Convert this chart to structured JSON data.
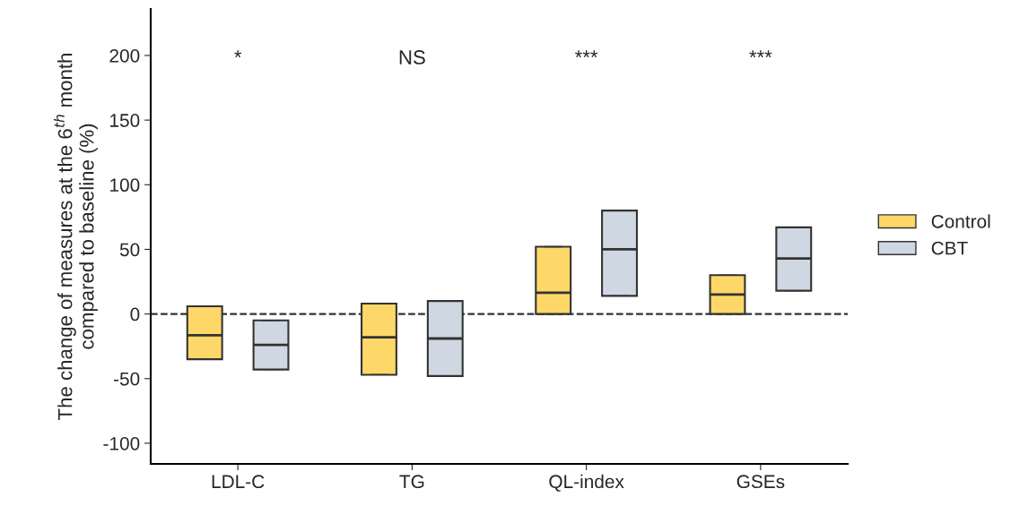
{
  "chart_data": {
    "type": "box",
    "ylabel": "The change of measures at the 6$^{th}$ month\ncompared to baseline (%)",
    "categories": [
      "LDL-C",
      "TG",
      "QL-index",
      "GSEs"
    ],
    "series": [
      {
        "name": "Control",
        "color": "#fdd868",
        "boxes": [
          {
            "low": -35,
            "q1": -35,
            "median": -16.5,
            "q3": 6,
            "high": 6
          },
          {
            "low": -47,
            "q1": -47,
            "median": -18,
            "q3": 8,
            "high": 8
          },
          {
            "low": 0,
            "q1": 0,
            "median": 16.5,
            "q3": 52,
            "high": 52
          },
          {
            "low": 0,
            "q1": 0,
            "median": 15,
            "q3": 30,
            "high": 30
          }
        ]
      },
      {
        "name": "CBT",
        "color": "#cfd8e2",
        "boxes": [
          {
            "low": -43,
            "q1": -43,
            "median": -24,
            "q3": -5,
            "high": -5
          },
          {
            "low": -48,
            "q1": -48,
            "median": -19,
            "q3": 10,
            "high": 10
          },
          {
            "low": 14,
            "q1": 14,
            "median": 50,
            "q3": 80,
            "high": 80
          },
          {
            "low": 18,
            "q1": 18,
            "median": 43,
            "q3": 67,
            "high": 67
          }
        ]
      }
    ],
    "annotations": [
      "*",
      "NS",
      "***",
      "***"
    ],
    "ref_lines": [
      {
        "axis": "y",
        "value": 0,
        "line_style": "dashed",
        "color": "#333333"
      }
    ],
    "ylim": [
      -116,
      236
    ],
    "yticks": [
      -100,
      -50,
      0,
      50,
      100,
      150,
      200
    ],
    "grid": false,
    "legend": "right"
  }
}
